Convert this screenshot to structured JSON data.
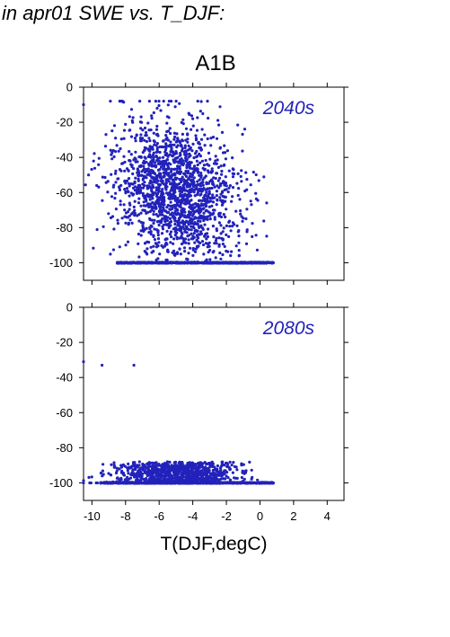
{
  "header_text": "in apr01 SWE vs. T_DJF:",
  "title": "A1B",
  "xlabel": "T(DJF,degC)",
  "colors": {
    "points": "#2222bb",
    "axis": "#000000"
  },
  "chart_data": [
    {
      "type": "scatter",
      "panel": "2040s",
      "label": "2040s",
      "xlim": [
        -10.5,
        5
      ],
      "ylim": [
        -110,
        0
      ],
      "xticks": [
        -10,
        -8,
        -6,
        -4,
        -2,
        0,
        2,
        4
      ],
      "yticks": [
        0,
        -20,
        -40,
        -60,
        -80,
        -100
      ],
      "label_x_ticks": false,
      "cloud": {
        "x_range": [
          -10.5,
          0.8
        ],
        "y_range": [
          -100,
          -8
        ],
        "floor_value": -100,
        "floor_x_range": [
          -8.5,
          0.8
        ],
        "center_x": -5,
        "center_y": -60,
        "approx_points": 2400
      },
      "notable_points": [
        [
          -10.5,
          -10
        ],
        [
          -3.7,
          -8
        ],
        [
          -10.2,
          -50
        ],
        [
          0.8,
          -100
        ]
      ]
    },
    {
      "type": "scatter",
      "panel": "2080s",
      "label": "2080s",
      "xlim": [
        -10.5,
        5
      ],
      "ylim": [
        -110,
        0
      ],
      "xticks": [
        -10,
        -8,
        -6,
        -4,
        -2,
        0,
        2,
        4
      ],
      "xtick_labels": [
        "-10",
        "-8",
        "-6",
        "-4",
        "-2",
        "0",
        "2",
        "4"
      ],
      "yticks": [
        0,
        -20,
        -40,
        -60,
        -80,
        -100
      ],
      "label_x_ticks": true,
      "cloud": {
        "x_range": [
          -10.5,
          0.8
        ],
        "y_range": [
          -100,
          -31
        ],
        "floor_value": -100,
        "floor_x_range": [
          -9.5,
          0.8
        ],
        "center_x": -5,
        "center_y": -88,
        "approx_points": 2000
      },
      "notable_points": [
        [
          -10.5,
          -31
        ],
        [
          -9.4,
          -33
        ],
        [
          -7.5,
          -33
        ],
        [
          0.8,
          -100
        ]
      ]
    }
  ]
}
